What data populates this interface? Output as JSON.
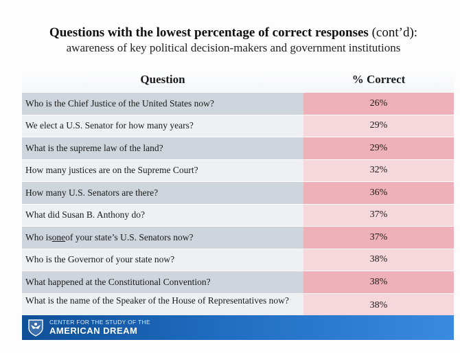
{
  "title": {
    "main": "Questions with the lowest percentage of correct responses",
    "suffix": " (cont’d):",
    "subtitle": "awareness of key political decision-makers and government institutions"
  },
  "table": {
    "headers": {
      "question": "Question",
      "percent": "% Correct"
    },
    "rows": [
      {
        "question": "Who is the Chief Justice of the United States now?",
        "percent": "26%",
        "percent_value": 26
      },
      {
        "question": "We elect a U.S. Senator for how many years?",
        "percent": "29%",
        "percent_value": 29
      },
      {
        "question": "What is the supreme law of the land?",
        "percent": "29%",
        "percent_value": 29
      },
      {
        "question": "How many justices are on the Supreme Court?",
        "percent": "32%",
        "percent_value": 32
      },
      {
        "question": "How many U.S. Senators are there?",
        "percent": "36%",
        "percent_value": 36
      },
      {
        "question": "What did Susan B. Anthony do?",
        "percent": "37%",
        "percent_value": 37
      },
      {
        "question_pre": "Who is ",
        "question_underlined": "one",
        "question_post": " of your state’s U.S. Senators now?",
        "percent": "37%",
        "percent_value": 37
      },
      {
        "question": "Who is the Governor of your state now?",
        "percent": "38%",
        "percent_value": 38
      },
      {
        "question": "What happened at the Constitutional Convention?",
        "percent": "38%",
        "percent_value": 38
      },
      {
        "question": "What is the name of the Speaker of the House of Representatives now?",
        "percent": "38%",
        "percent_value": 38
      }
    ]
  },
  "footer": {
    "logo_line1": "CENTER FOR THE STUDY OF THE",
    "logo_line2": "AMERICAN DREAM",
    "logo_icon": "eagle-shield-icon"
  },
  "colors": {
    "question_dark": "#cfd5dc",
    "question_light": "#eef0f3",
    "percent_dark": "#efb1b9",
    "percent_light": "#f6d7dc",
    "footer_blue": "#1f6cc0"
  }
}
